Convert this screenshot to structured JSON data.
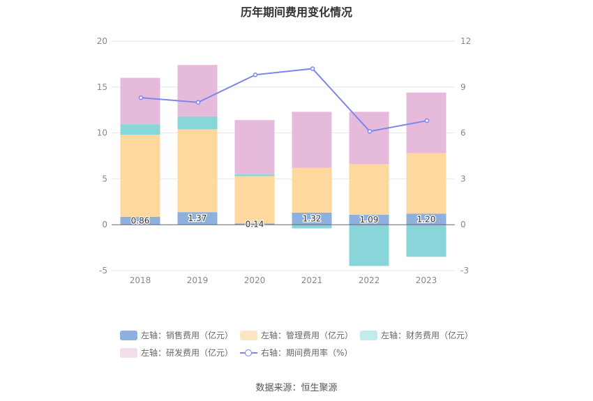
{
  "chart_data": {
    "type": "bar",
    "title": "历年期间费用变化情况",
    "categories": [
      "2018",
      "2019",
      "2020",
      "2021",
      "2022",
      "2023"
    ],
    "left_axis": {
      "ylim": [
        -5,
        20
      ],
      "ticks": [
        -5,
        0,
        5,
        10,
        15,
        20
      ]
    },
    "right_axis": {
      "ylim": [
        -3,
        12
      ],
      "ticks": [
        -3,
        0,
        3,
        6,
        9,
        12
      ]
    },
    "stacked": true,
    "series": [
      {
        "name": "左轴：销售费用（亿元）",
        "kind": "bar",
        "axis": "left",
        "color": "#8eb0de",
        "values": [
          0.86,
          1.37,
          0.14,
          1.32,
          1.09,
          1.2
        ],
        "labels": [
          "0.86",
          "1.37",
          "0.14",
          "1.32",
          "1.09",
          "1.20"
        ]
      },
      {
        "name": "左轴：管理费用（亿元）",
        "kind": "bar",
        "axis": "left",
        "color": "#fed89d",
        "values": [
          8.94,
          9.03,
          5.16,
          4.88,
          5.51,
          6.6
        ]
      },
      {
        "name": "左轴：财务费用（亿元）",
        "kind": "bar",
        "axis": "left",
        "color": "#88d5da",
        "values": [
          1.15,
          1.4,
          0.2,
          -0.4,
          -4.5,
          -3.5
        ]
      },
      {
        "name": "左轴：研发费用（亿元）",
        "kind": "bar",
        "axis": "left",
        "color": "#e6badb",
        "values": [
          5.05,
          5.6,
          5.9,
          6.1,
          5.7,
          6.6
        ]
      },
      {
        "name": "右轴：期间费用率（%）",
        "kind": "line",
        "axis": "right",
        "color": "#7b86ee",
        "values": [
          8.3,
          8.0,
          9.8,
          10.2,
          6.1,
          6.8
        ]
      }
    ],
    "legend_position": "bottom",
    "grid": true
  },
  "source": "数据来源：恒生聚源"
}
